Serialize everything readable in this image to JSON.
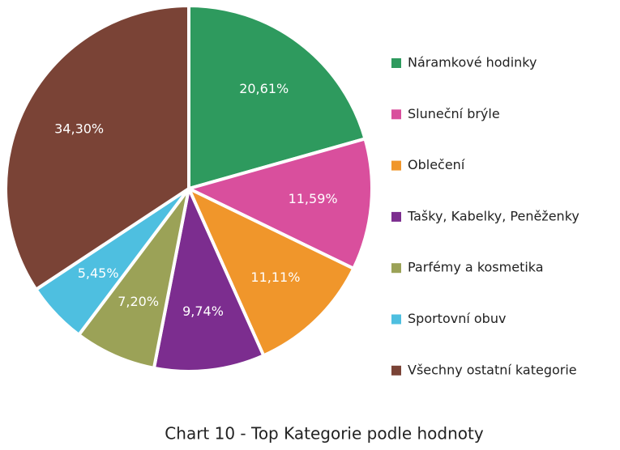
{
  "chart_data": {
    "type": "pie",
    "title": "Chart 10 - Top Kategorie podle hodnoty",
    "categories": [
      "Náramkové hodinky",
      "Sluneční brýle",
      "Oblečení",
      "Tašky, Kabelky, Peněženky",
      "Parfémy a kosmetika",
      "Sportovní obuv",
      "Všechny ostatní kategorie"
    ],
    "values": [
      20.61,
      11.59,
      11.11,
      9.74,
      7.2,
      5.45,
      34.3
    ],
    "value_labels": [
      "20,61%",
      "11,59%",
      "11,11%",
      "9,74%",
      "7,20%",
      "5,45%",
      "34,30%"
    ],
    "colors": [
      "#2e9a5e",
      "#d94f9d",
      "#f0962b",
      "#7c2d8f",
      "#9ba257",
      "#4ebfe0",
      "#7a4336"
    ],
    "legend": "right"
  }
}
